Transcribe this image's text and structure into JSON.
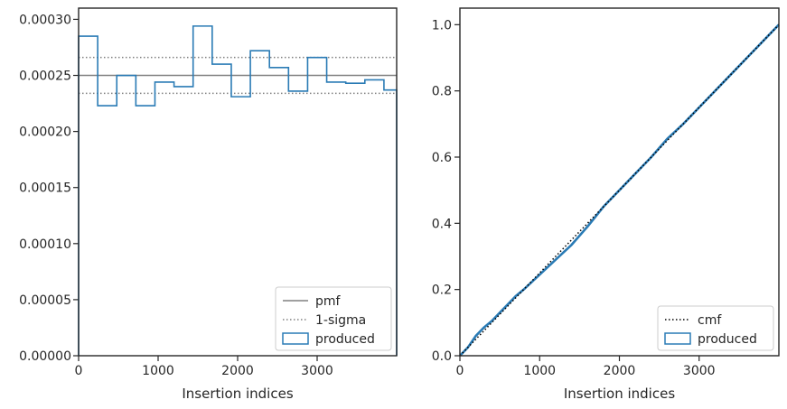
{
  "colors": {
    "produced": "#2a7bb5",
    "produced_dark": "#1f4f78",
    "pmf": "#808080",
    "sigma": "#808080",
    "cmf": "#000000",
    "axes": "#262626"
  },
  "chart_data": [
    {
      "type": "step",
      "xlabel": "Insertion indices",
      "ylabel": "",
      "xlim": [
        0,
        4000
      ],
      "ylim": [
        0,
        0.00031
      ],
      "x_ticks": [
        0,
        1000,
        2000,
        3000
      ],
      "x_tick_labels": [
        "0",
        "1000",
        "2000",
        "3000"
      ],
      "y_ticks": [
        0,
        5e-05,
        0.0001,
        0.00015,
        0.0002,
        0.00025,
        0.0003
      ],
      "y_tick_labels": [
        "0.00000",
        "0.00005",
        "0.00010",
        "0.00015",
        "0.00020",
        "0.00025",
        "0.00030"
      ],
      "pmf": 0.00025,
      "sigma_upper": 0.000266,
      "sigma_lower": 0.000234,
      "bin_edges": [
        0,
        240,
        480,
        720,
        960,
        1200,
        1440,
        1680,
        1920,
        2160,
        2400,
        2640,
        2880,
        3120,
        3360,
        3600,
        3840,
        4000
      ],
      "produced": [
        0.000285,
        0.000223,
        0.00025,
        0.000223,
        0.000244,
        0.00024,
        0.000294,
        0.00026,
        0.000231,
        0.000272,
        0.000257,
        0.000236,
        0.000266,
        0.000244,
        0.000243,
        0.000246,
        0.000237
      ],
      "legend": {
        "position": "lower-right",
        "entries": [
          {
            "label": "pmf",
            "style": "pmf"
          },
          {
            "label": "1-sigma",
            "style": "sigma"
          },
          {
            "label": "produced",
            "style": "produced"
          }
        ]
      },
      "grid": false
    },
    {
      "type": "line",
      "xlabel": "Insertion indices",
      "ylabel": "",
      "xlim": [
        0,
        4000
      ],
      "ylim": [
        0,
        1.05
      ],
      "x_ticks": [
        0,
        1000,
        2000,
        3000
      ],
      "x_tick_labels": [
        "0",
        "1000",
        "2000",
        "3000"
      ],
      "y_ticks": [
        0,
        0.2,
        0.4,
        0.6,
        0.8,
        1.0
      ],
      "y_tick_labels": [
        "0.0",
        "0.2",
        "0.4",
        "0.6",
        "0.8",
        "1.0"
      ],
      "cmf": {
        "x": [
          0,
          4000
        ],
        "y": [
          0,
          1.0
        ]
      },
      "produced": {
        "x": [
          0,
          100,
          200,
          300,
          400,
          500,
          600,
          700,
          800,
          1000,
          1200,
          1400,
          1600,
          1800,
          2000,
          2200,
          2400,
          2600,
          2800,
          3000,
          3200,
          3400,
          3600,
          3800,
          4000
        ],
        "y": [
          0,
          0.025,
          0.06,
          0.085,
          0.105,
          0.13,
          0.155,
          0.18,
          0.2,
          0.245,
          0.29,
          0.335,
          0.39,
          0.45,
          0.5,
          0.55,
          0.6,
          0.655,
          0.7,
          0.75,
          0.8,
          0.85,
          0.9,
          0.95,
          1.0
        ]
      },
      "legend": {
        "position": "lower-right",
        "entries": [
          {
            "label": "cmf",
            "style": "cmf"
          },
          {
            "label": "produced",
            "style": "produced"
          }
        ]
      },
      "grid": false
    }
  ]
}
